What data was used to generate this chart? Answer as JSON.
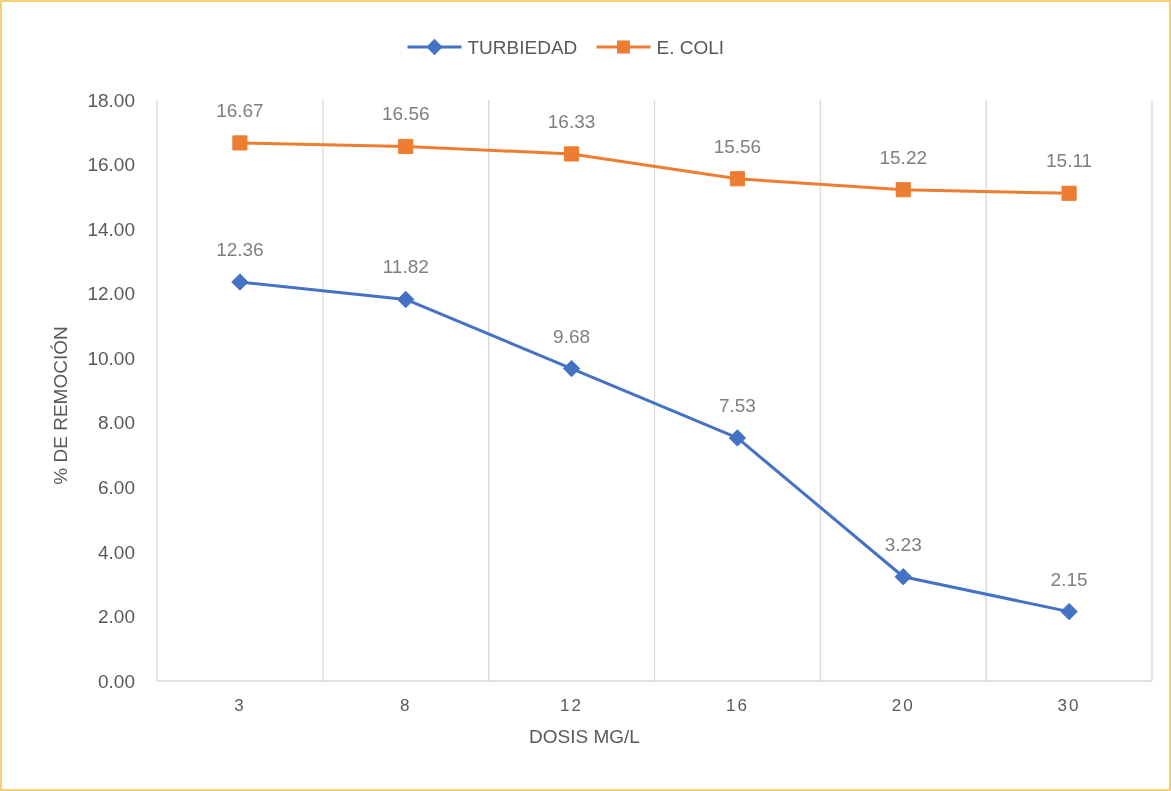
{
  "chart_data": {
    "type": "line",
    "xlabel": "DOSIS MG/L",
    "ylabel": "% DE REMOCIÓN",
    "categories": [
      "3",
      "8",
      "12",
      "16",
      "20",
      "30"
    ],
    "series": [
      {
        "name": "TURBIEDAD",
        "color": "#4472c4",
        "marker": "diamond",
        "values": [
          12.36,
          11.82,
          9.68,
          7.53,
          3.23,
          2.15
        ]
      },
      {
        "name": "E. COLI",
        "color": "#ed7d31",
        "marker": "square",
        "values": [
          16.67,
          16.56,
          16.33,
          15.56,
          15.22,
          15.11
        ]
      }
    ],
    "ylim": [
      0,
      18
    ],
    "yticks": [
      {
        "value": 0,
        "label": "0.00"
      },
      {
        "value": 2,
        "label": "2.00"
      },
      {
        "value": 4,
        "label": "4.00"
      },
      {
        "value": 6,
        "label": "6.00"
      },
      {
        "value": 8,
        "label": "8.00"
      },
      {
        "value": 10,
        "label": "10.00"
      },
      {
        "value": 12,
        "label": "12.00"
      },
      {
        "value": 14,
        "label": "14.00"
      },
      {
        "value": 16,
        "label": "16.00"
      },
      {
        "value": 18,
        "label": "18.00"
      }
    ],
    "grid": "x",
    "legend": "top",
    "data_labels": true,
    "line_style": "solid"
  }
}
